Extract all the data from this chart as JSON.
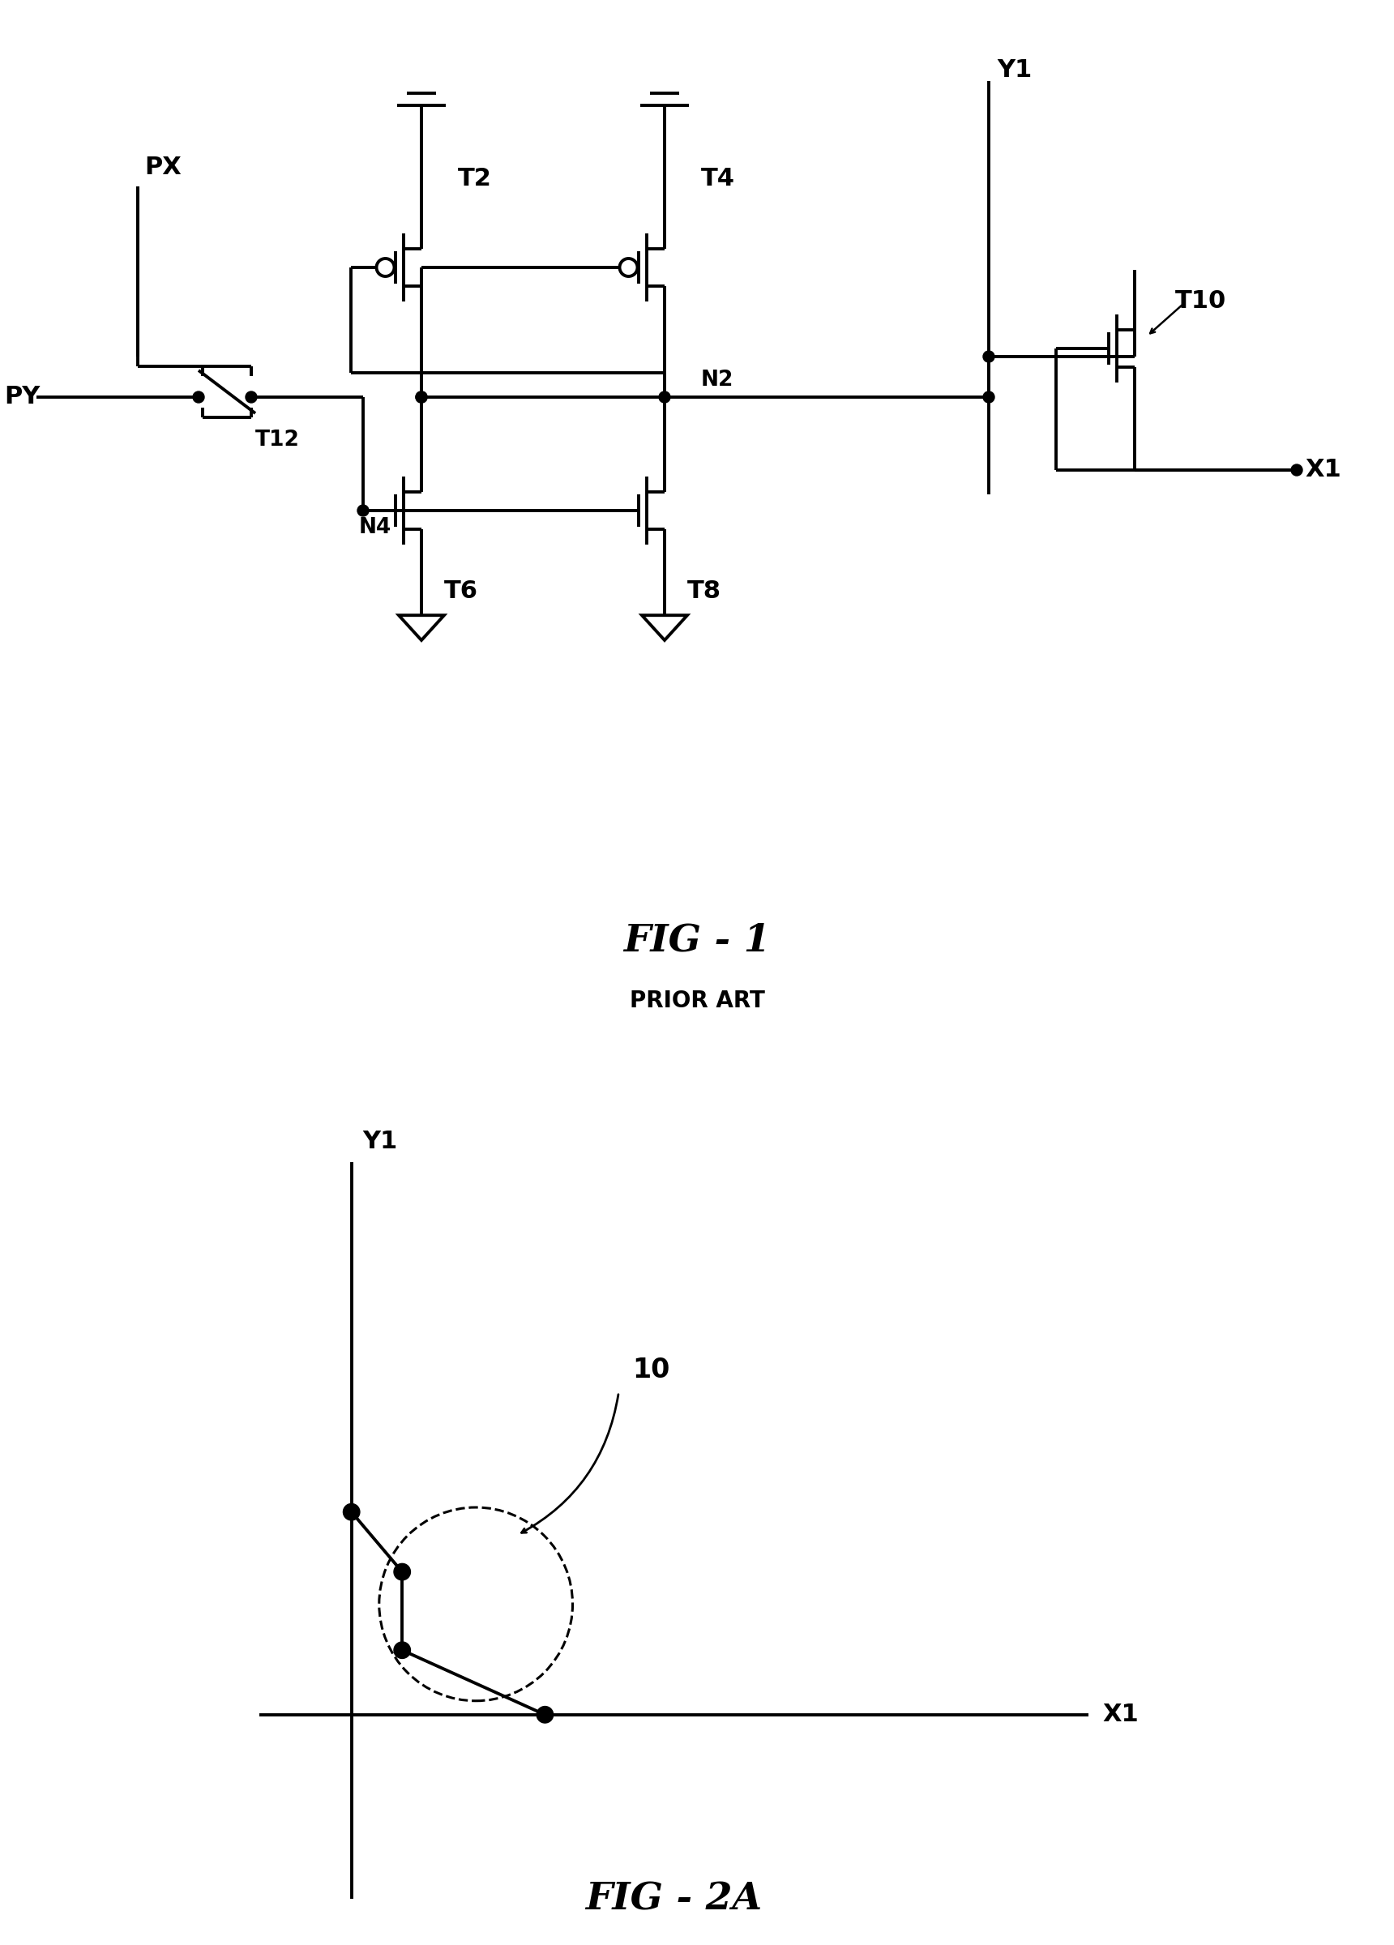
{
  "background_color": "#ffffff",
  "fig1_title": "FIG - 1",
  "fig1_subtitle": "PRIOR ART",
  "fig2_title": "FIG - 2A",
  "title_fontsize": 32,
  "subtitle_fontsize": 20,
  "label_fontsize": 22,
  "lw": 2.8
}
